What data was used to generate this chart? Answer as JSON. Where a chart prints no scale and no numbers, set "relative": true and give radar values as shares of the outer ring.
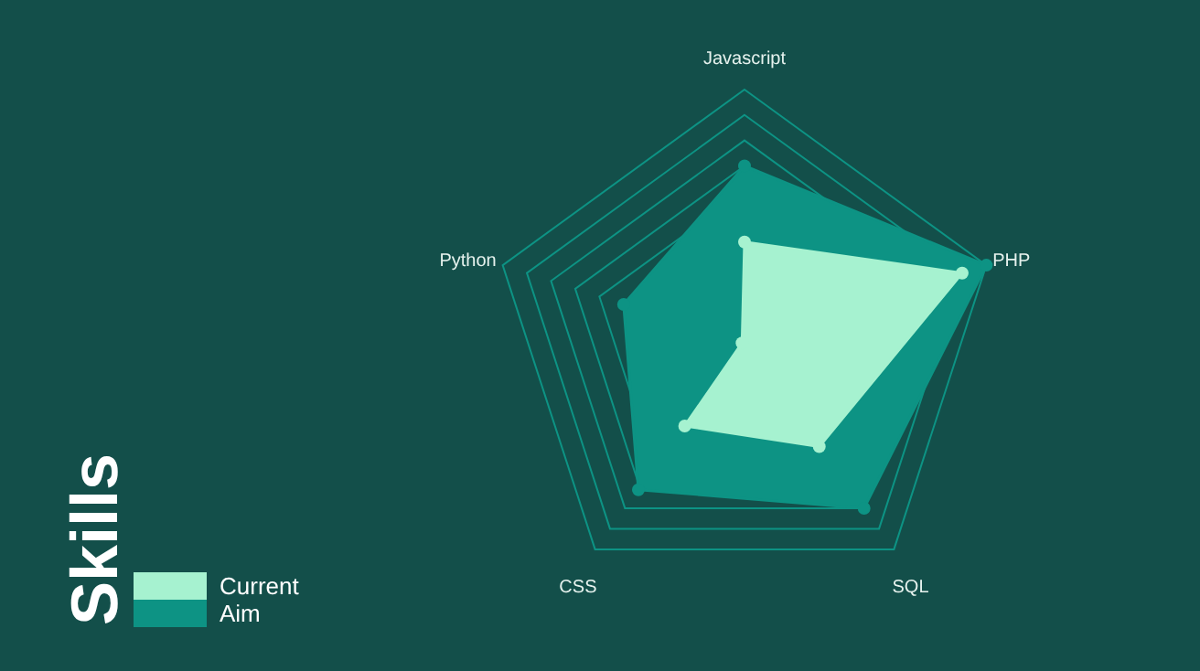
{
  "chart_data": {
    "type": "radar",
    "title": "Skills",
    "categories": [
      "Javascript",
      "PHP",
      "SQL",
      "CSS",
      "Python"
    ],
    "relative": true,
    "grid": true,
    "legend": "bottom left",
    "marker": "circle",
    "series": [
      {
        "name": "Current",
        "color": "#a6f2d0",
        "values": [
          0.4,
          0.9,
          0.5,
          0.4,
          0.01
        ]
      },
      {
        "name": "Aim",
        "color": "#0d9384",
        "values": [
          0.7,
          1,
          0.8,
          0.71,
          0.5
        ]
      }
    ]
  }
}
